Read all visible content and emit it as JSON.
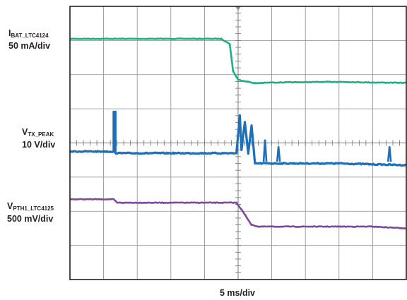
{
  "chart_data": {
    "type": "line",
    "grid": true,
    "x_divisions": 10,
    "y_divisions": 8,
    "xlabel": "5 ms/div",
    "trigger_marker": "down-triangle",
    "series": [
      {
        "name_main": "I",
        "name_sub": "BAT_LTC4124",
        "scale": "50 mA/div",
        "color": "#1fae84",
        "x_div": [
          0,
          4.5,
          4.75,
          4.85,
          5.0,
          5.5,
          6,
          7,
          8,
          9,
          10
        ],
        "y_div": [
          7.05,
          7.05,
          6.9,
          6.1,
          5.85,
          5.75,
          5.77,
          5.78,
          5.79,
          5.77,
          5.76
        ]
      },
      {
        "name_main": "V",
        "name_sub": "TX_PEAK",
        "scale": "10 V/div",
        "color": "#1c6fb8",
        "x_div": [
          0,
          1.1,
          1.3,
          1.3,
          1.35,
          1.35,
          1.4,
          4.95,
          5.05,
          5.1,
          5.2,
          5.3,
          5.4,
          5.5,
          6,
          8,
          10
        ],
        "y_div": [
          3.75,
          3.75,
          3.75,
          4.9,
          4.9,
          3.7,
          3.7,
          3.7,
          4.8,
          3.8,
          4.6,
          3.7,
          4.5,
          3.4,
          3.4,
          3.4,
          3.35
        ],
        "spikes": [
          {
            "x_div": 5.8,
            "y_div": 4.1
          },
          {
            "x_div": 6.2,
            "y_div": 3.9
          },
          {
            "x_div": 9.5,
            "y_div": 3.9
          }
        ]
      },
      {
        "name_main": "V",
        "name_sub": "PTH1_LTC4125",
        "scale": "500 mV/div",
        "color": "#7a4a9b",
        "x_div": [
          0,
          1.3,
          1.4,
          4.95,
          5.1,
          5.4,
          5.6,
          6,
          7,
          8,
          9,
          10
        ],
        "y_div": [
          2.35,
          2.35,
          2.25,
          2.25,
          2.05,
          1.6,
          1.55,
          1.55,
          1.55,
          1.55,
          1.55,
          1.5
        ]
      }
    ]
  }
}
